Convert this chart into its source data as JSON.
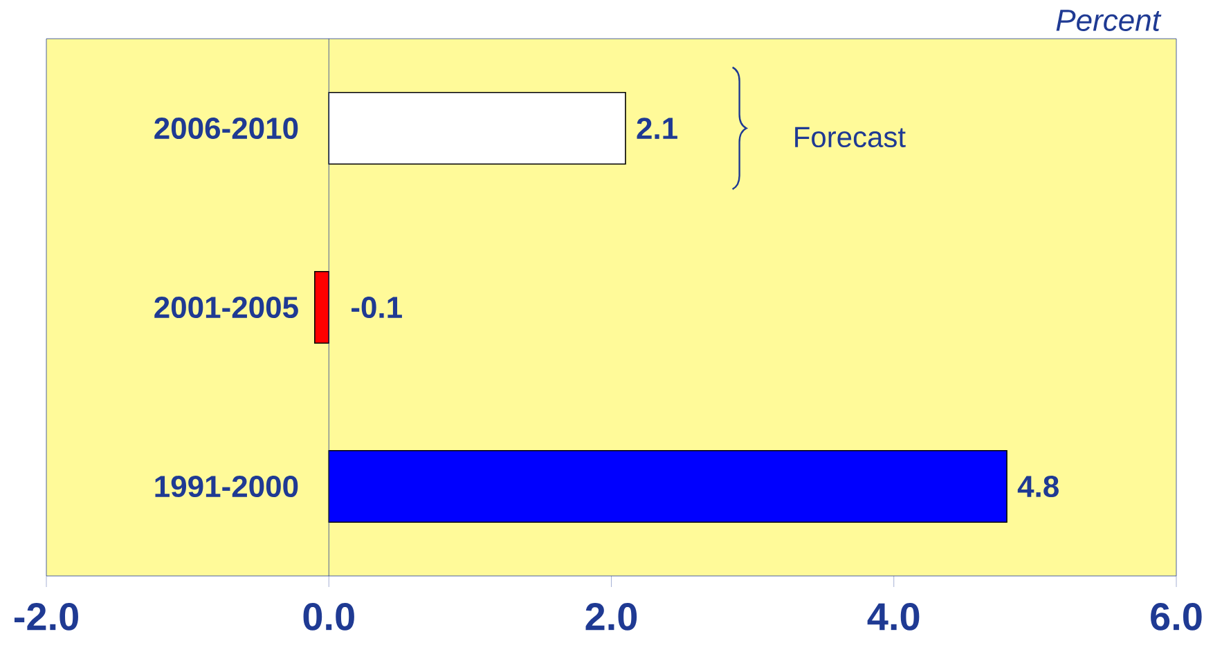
{
  "chart_data": {
    "type": "bar",
    "orientation": "horizontal",
    "xlabel": "Percent",
    "categories": [
      "2006-2010",
      "2001-2005",
      "1991-2000"
    ],
    "values": [
      2.1,
      -0.1,
      4.8
    ],
    "colors": [
      "#ffffff",
      "#ff0000",
      "#0000ff"
    ],
    "xlim": [
      -2,
      6
    ],
    "xticks": [
      {
        "value": -2,
        "label": "-2.0"
      },
      {
        "value": 0,
        "label": "0.0"
      },
      {
        "value": 2,
        "label": "2.0"
      },
      {
        "value": 4,
        "label": "4.0"
      },
      {
        "value": 6,
        "label": "6.0"
      }
    ],
    "data_labels": true,
    "annotations": [
      "Forecast"
    ]
  }
}
